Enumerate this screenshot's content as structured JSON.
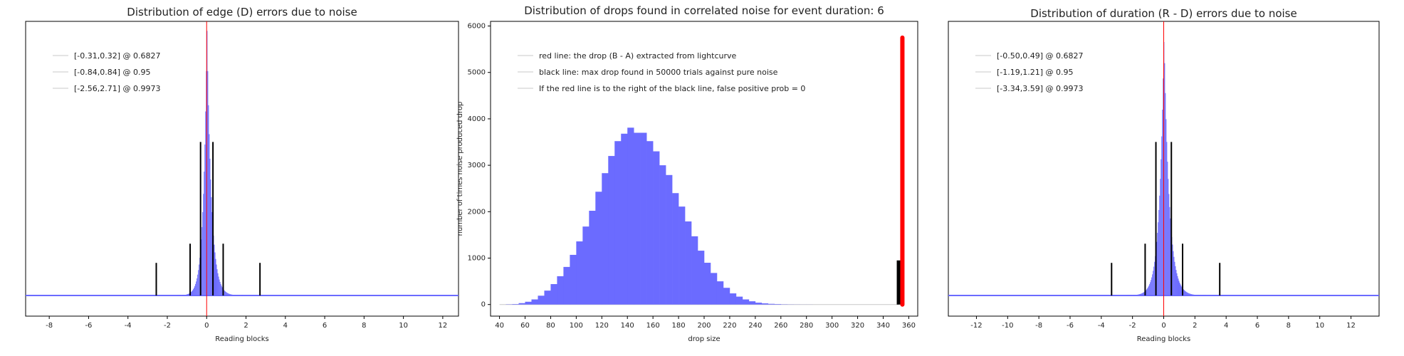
{
  "chart_data": [
    {
      "type": "bar",
      "title": "Distribution of edge (D) errors due to noise",
      "xlabel": "Reading blocks",
      "ylabel": "",
      "xlim": [
        -9.2,
        12.8
      ],
      "x_ticks": [
        -8,
        -6,
        -4,
        -2,
        0,
        2,
        4,
        6,
        8,
        10,
        12
      ],
      "y_ticks": [],
      "grid": false,
      "legend_position": "top-left",
      "legend": [
        "[-0.31,0.32] @ 0.6827",
        "[-0.84,0.84] @ 0.95",
        "[-2.56,2.71] @ 0.9973"
      ],
      "histogram": {
        "center": 0.0,
        "sigma_left": 0.25,
        "sigma_right": 0.3,
        "peak_fraction": 0.98
      },
      "marker_line": {
        "x": 0.0,
        "color": "#ff0000"
      },
      "confidence_bars": [
        {
          "x": -0.31,
          "height_fraction": 0.8
        },
        {
          "x": 0.32,
          "height_fraction": 0.8
        },
        {
          "x": -0.84,
          "height_fraction": 0.27
        },
        {
          "x": 0.84,
          "height_fraction": 0.27
        },
        {
          "x": -2.56,
          "height_fraction": 0.17
        },
        {
          "x": 2.71,
          "height_fraction": 0.17
        }
      ]
    },
    {
      "type": "bar",
      "title": "Distribution of drops found in correlated noise for event duration: 6",
      "xlabel": "drop size",
      "ylabel": "number of times noise produced drop",
      "xlim": [
        33,
        367
      ],
      "ylim": [
        -250,
        6100
      ],
      "x_ticks": [
        40,
        60,
        80,
        100,
        120,
        140,
        160,
        180,
        200,
        220,
        240,
        260,
        280,
        300,
        320,
        340,
        360
      ],
      "y_ticks": [
        0,
        1000,
        2000,
        3000,
        4000,
        5000,
        6000
      ],
      "grid": false,
      "legend_position": "top-left",
      "legend": [
        "red line: the drop (B - A) extracted from lightcurve",
        "black line: max drop found in 50000 trials against pure noise",
        "If the red line is to the right of the black line, false positive prob = 0"
      ],
      "bin_width": 5,
      "bins_start": 45,
      "values": [
        5,
        10,
        30,
        60,
        110,
        190,
        300,
        440,
        610,
        810,
        1070,
        1360,
        1680,
        2020,
        2430,
        2830,
        3200,
        3520,
        3680,
        3810,
        3700,
        3700,
        3520,
        3300,
        3000,
        2790,
        2400,
        2110,
        1790,
        1470,
        1160,
        900,
        680,
        500,
        360,
        240,
        170,
        110,
        70,
        40,
        25,
        15,
        10,
        5,
        3,
        2,
        1,
        1,
        0,
        0,
        0,
        0,
        0,
        0,
        0,
        0,
        0,
        0,
        0,
        0,
        0,
        0
      ],
      "red_line": {
        "x": 355,
        "y": 5750,
        "color": "#ff0000"
      },
      "black_line": {
        "x": 352,
        "y": 950,
        "color": "#000000"
      }
    },
    {
      "type": "bar",
      "title": "Distribution of duration (R - D) errors due to noise",
      "xlabel": "Reading blocks",
      "ylabel": "",
      "xlim": [
        -13.8,
        13.8
      ],
      "x_ticks": [
        -12,
        -10,
        -8,
        -6,
        -4,
        -2,
        0,
        2,
        4,
        6,
        8,
        10,
        12
      ],
      "y_ticks": [],
      "grid": false,
      "legend_position": "top-left",
      "legend": [
        "[-0.50,0.49] @ 0.6827",
        "[-1.19,1.21] @ 0.95",
        "[-3.34,3.59] @ 0.9973"
      ],
      "histogram": {
        "center": 0.0,
        "sigma_left": 0.4,
        "sigma_right": 0.45,
        "peak_fraction": 0.95
      },
      "marker_line": {
        "x": 0.0,
        "color": "#ff0000"
      },
      "confidence_bars": [
        {
          "x": -0.5,
          "height_fraction": 0.8
        },
        {
          "x": 0.49,
          "height_fraction": 0.8
        },
        {
          "x": -1.19,
          "height_fraction": 0.27
        },
        {
          "x": 1.21,
          "height_fraction": 0.27
        },
        {
          "x": -3.34,
          "height_fraction": 0.17
        },
        {
          "x": 3.59,
          "height_fraction": 0.17
        }
      ]
    }
  ]
}
